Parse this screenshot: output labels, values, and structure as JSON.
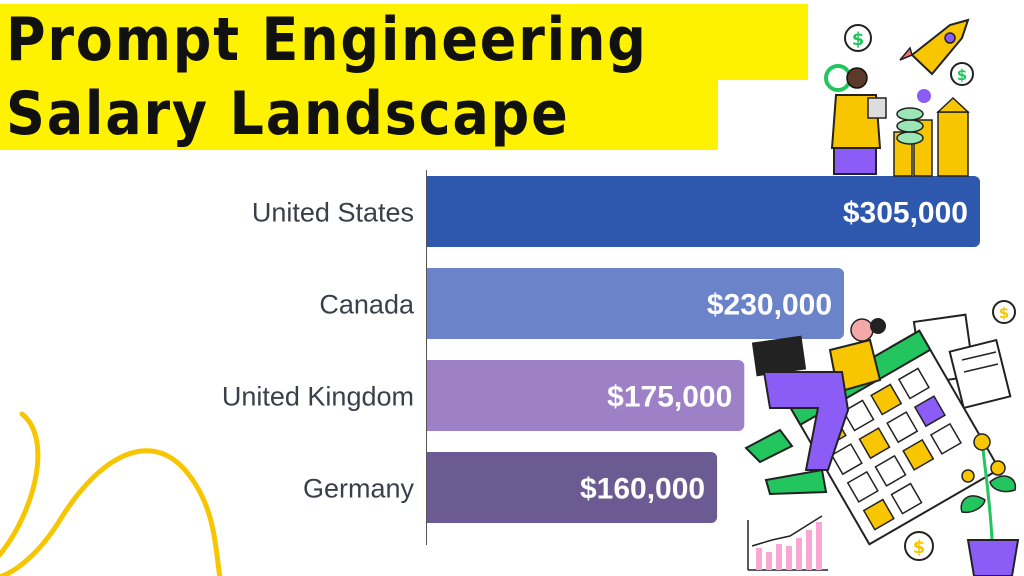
{
  "title": {
    "line1": "Prompt Engineering",
    "line2": "Salary Landscape"
  },
  "chart_data": {
    "type": "bar",
    "orientation": "horizontal",
    "categories": [
      "United States",
      "Canada",
      "United Kingdom",
      "Germany"
    ],
    "values": [
      305000,
      230000,
      175000,
      160000
    ],
    "value_labels": [
      "$305,000",
      "$230,000",
      "$175,000",
      "$160,000"
    ],
    "bar_colors": [
      "#2e57ae",
      "#6a83c9",
      "#9d80c6",
      "#6c5a92"
    ],
    "xlim": [
      0,
      305000
    ],
    "grid": false,
    "legend": "none"
  },
  "colors": {
    "title_highlight": "#fff200",
    "title_text": "#111111",
    "accent_yellow": "#f7c600",
    "accent_purple": "#8b5cf6",
    "accent_green": "#22c55e"
  },
  "icons": [
    "dollar-coin-icon",
    "rocket-icon",
    "gear-icon",
    "growth-chart-icon",
    "calendar-icon",
    "document-icon",
    "money-plant-icon",
    "person-laptop-illustration",
    "person-presenting-illustration",
    "squiggle-line-decoration"
  ]
}
